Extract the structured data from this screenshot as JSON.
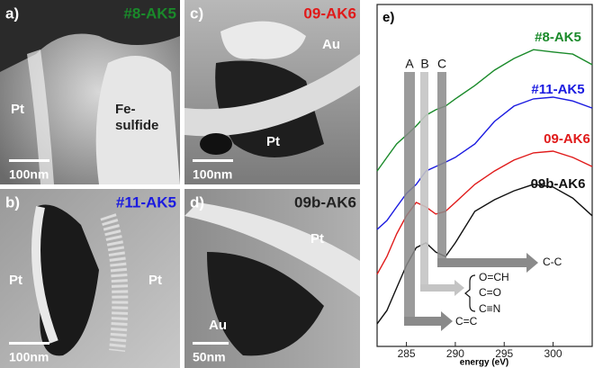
{
  "panels": [
    {
      "label": "a)",
      "sample": "#8-AK5",
      "texts": [
        "Pt",
        "Fe-",
        "sulfide"
      ],
      "scale": "100nm"
    },
    {
      "label": "b)",
      "sample": "#11-AK5",
      "texts": [
        "Pt",
        "Pt"
      ],
      "scale": "100nm"
    },
    {
      "label": "c)",
      "sample": "09-AK6",
      "texts": [
        "Au",
        "Pt"
      ],
      "scale": "100nm"
    },
    {
      "label": "d)",
      "sample": "09b-AK6",
      "texts": [
        "Pt",
        "Au"
      ],
      "scale": "50nm"
    }
  ],
  "chart_data": {
    "type": "line",
    "panel_label": "e)",
    "xlabel": "energy (eV)",
    "x": [
      282,
      283,
      284,
      285,
      286,
      287,
      288,
      289,
      290,
      292,
      294,
      296,
      298,
      300,
      302,
      304
    ],
    "series": [
      {
        "name": "#8-AK5",
        "color": "#1a8a2a",
        "values": [
          51.3,
          55.3,
          59.2,
          61.8,
          64.5,
          67.6,
          69.2,
          70.3,
          72.4,
          76.3,
          80.8,
          84.2,
          86.8,
          86.1,
          85.5,
          82.4
        ]
      },
      {
        "name": "#11-AK5",
        "color": "#1a1ae0",
        "values": [
          34.2,
          36.8,
          40.8,
          44.7,
          47.4,
          51.3,
          52.6,
          53.9,
          55.3,
          59.2,
          65.8,
          70.3,
          72.4,
          72.9,
          71.8,
          69.7
        ]
      },
      {
        "name": "09-AK6",
        "color": "#e01a1a",
        "values": [
          21.1,
          26.3,
          32.9,
          38.2,
          42.1,
          40.8,
          38.7,
          39.5,
          42.1,
          47.4,
          51.3,
          54.5,
          56.6,
          57.1,
          55.3,
          52.6
        ]
      },
      {
        "name": "09b-AK6",
        "color": "#111111",
        "values": [
          6.6,
          10.5,
          17.1,
          23.7,
          28.9,
          30.3,
          27.6,
          26.3,
          30.3,
          39.5,
          42.9,
          45.5,
          47.4,
          46.6,
          43.4,
          38.2
        ]
      }
    ],
    "xlim": [
      282,
      304
    ],
    "xticks": [
      285,
      290,
      295,
      300
    ],
    "ylim": [
      0,
      100
    ],
    "annotations": {
      "bands": [
        "A",
        "B",
        "C"
      ],
      "arrows": [
        "C=C",
        "O=CH",
        "C=O",
        "C≡N",
        "C-C"
      ]
    }
  }
}
